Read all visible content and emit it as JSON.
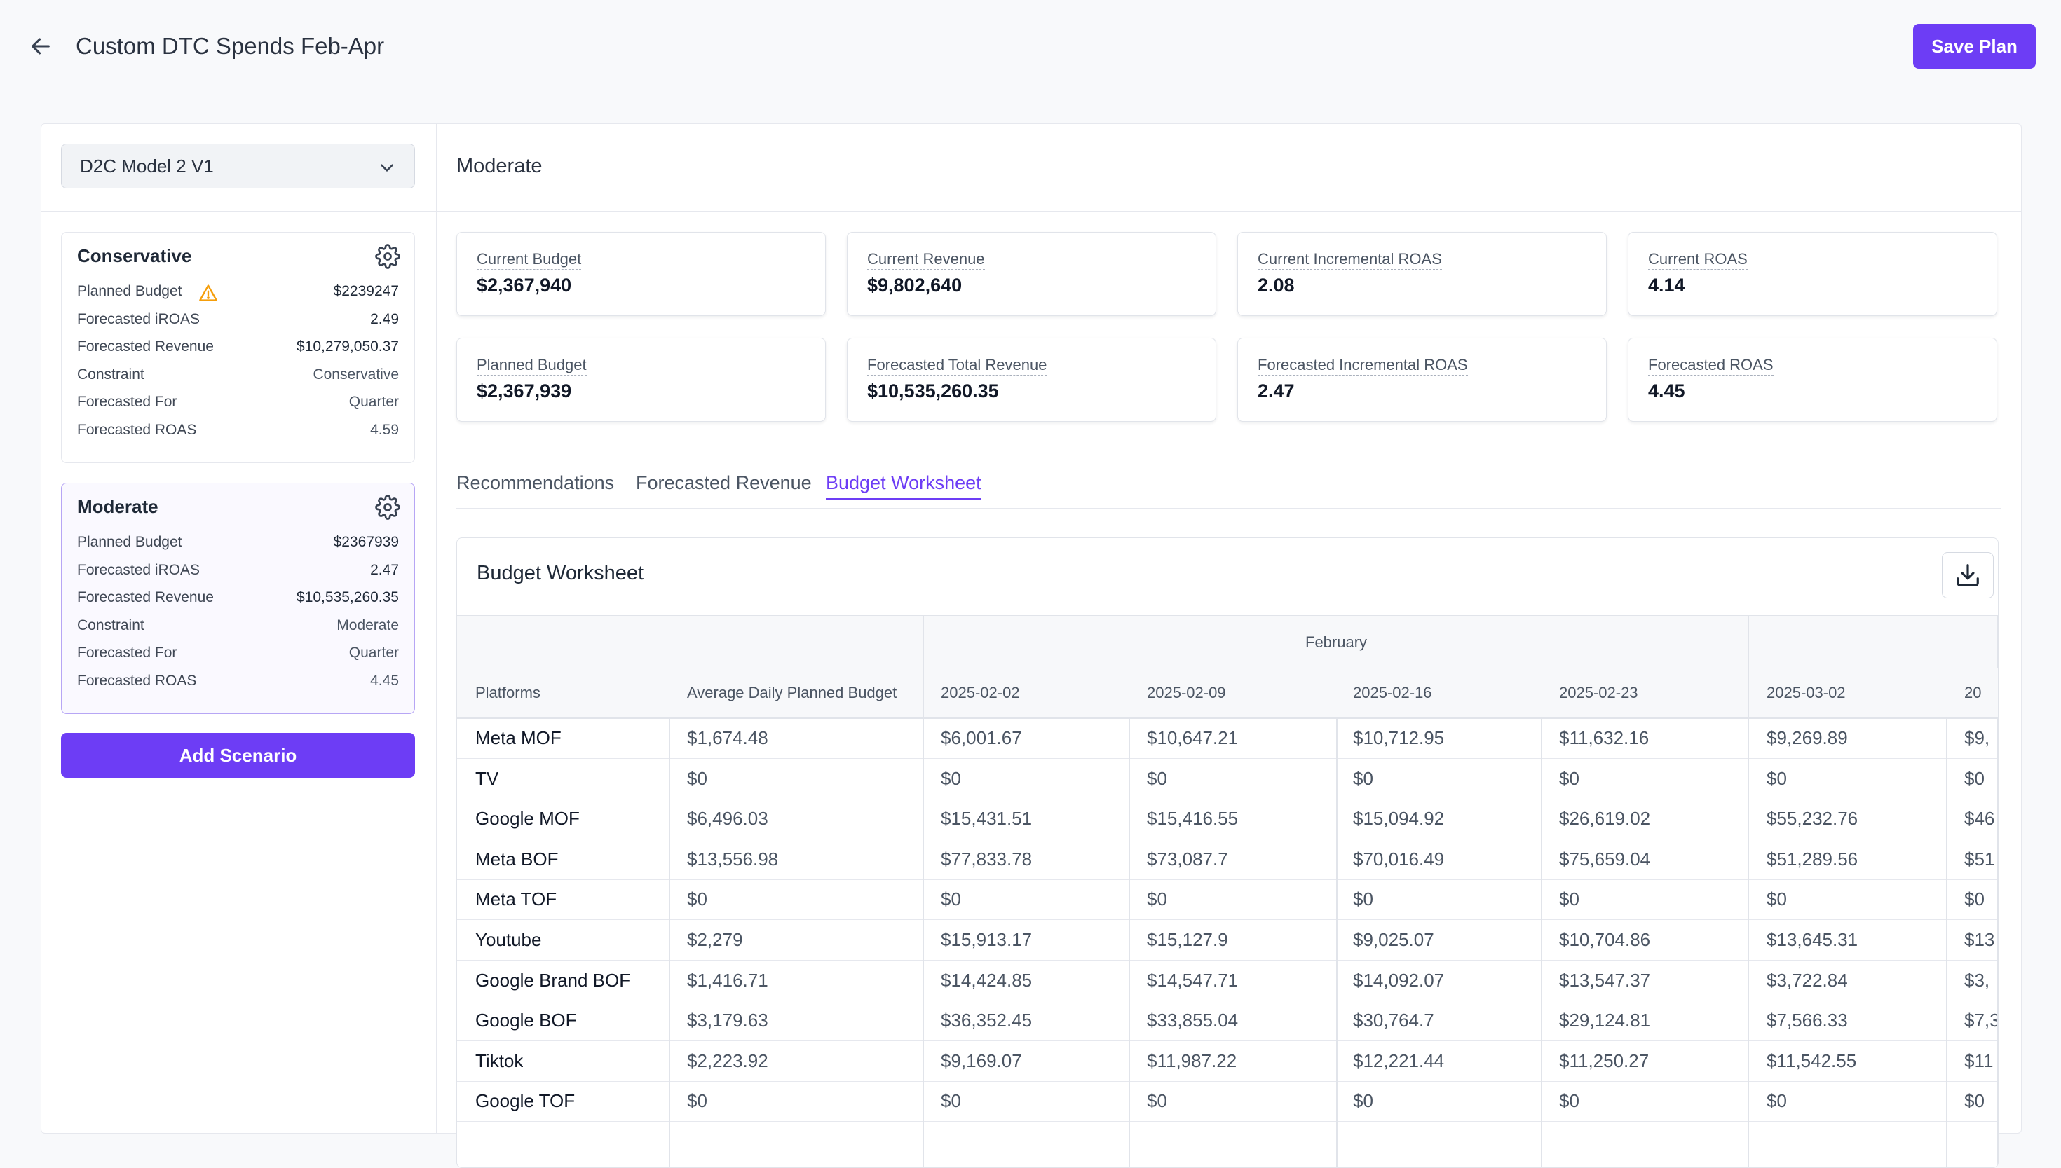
{
  "header": {
    "title": "Custom DTC Spends Feb-Apr",
    "save_label": "Save Plan"
  },
  "left": {
    "model_select": "D2C Model 2 V1",
    "add_scenario_label": "Add Scenario",
    "scenarios": [
      {
        "name": "Conservative",
        "rows": [
          {
            "k": "Planned Budget",
            "v": "$2239247",
            "warning": true
          },
          {
            "k": "Forecasted iROAS",
            "v": "2.49"
          },
          {
            "k": "Forecasted Revenue",
            "v": "$10,279,050.37"
          },
          {
            "k": "Constraint",
            "v": "Conservative"
          },
          {
            "k": "Forecasted For",
            "v": "Quarter"
          },
          {
            "k": "Forecasted ROAS",
            "v": "4.59"
          }
        ]
      },
      {
        "name": "Moderate",
        "rows": [
          {
            "k": "Planned Budget",
            "v": "$2367939"
          },
          {
            "k": "Forecasted iROAS",
            "v": "2.47"
          },
          {
            "k": "Forecasted Revenue",
            "v": "$10,535,260.35"
          },
          {
            "k": "Constraint",
            "v": "Moderate"
          },
          {
            "k": "Forecasted For",
            "v": "Quarter"
          },
          {
            "k": "Forecasted ROAS",
            "v": "4.45"
          }
        ]
      }
    ]
  },
  "right": {
    "scenario_title": "Moderate",
    "metrics": [
      {
        "label": "Current Budget",
        "value": "$2,367,940"
      },
      {
        "label": "Current Revenue",
        "value": "$9,802,640"
      },
      {
        "label": "Current Incremental ROAS",
        "value": "2.08"
      },
      {
        "label": "Current ROAS",
        "value": "4.14"
      },
      {
        "label": "Planned Budget",
        "value": "$2,367,939"
      },
      {
        "label": "Forecasted Total Revenue",
        "value": "$10,535,260.35"
      },
      {
        "label": "Forecasted Incremental ROAS",
        "value": "2.47"
      },
      {
        "label": "Forecasted ROAS",
        "value": "4.45"
      }
    ],
    "tabs": [
      "Recommendations",
      "Forecasted Revenue",
      "Budget Worksheet"
    ],
    "active_tab": "Budget Worksheet",
    "worksheet": {
      "title": "Budget Worksheet",
      "month": "February",
      "columns": [
        "Platforms",
        "Average Daily Planned Budget",
        "2025-02-02",
        "2025-02-09",
        "2025-02-16",
        "2025-02-23",
        "2025-03-02",
        "20"
      ],
      "rows": [
        [
          "Meta MOF",
          "$1,674.48",
          "$6,001.67",
          "$10,647.21",
          "$10,712.95",
          "$11,632.16",
          "$9,269.89",
          "$9,"
        ],
        [
          "TV",
          "$0",
          "$0",
          "$0",
          "$0",
          "$0",
          "$0",
          "$0"
        ],
        [
          "Google MOF",
          "$6,496.03",
          "$15,431.51",
          "$15,416.55",
          "$15,094.92",
          "$26,619.02",
          "$55,232.76",
          "$46"
        ],
        [
          "Meta BOF",
          "$13,556.98",
          "$77,833.78",
          "$73,087.7",
          "$70,016.49",
          "$75,659.04",
          "$51,289.56",
          "$51"
        ],
        [
          "Meta TOF",
          "$0",
          "$0",
          "$0",
          "$0",
          "$0",
          "$0",
          "$0"
        ],
        [
          "Youtube",
          "$2,279",
          "$15,913.17",
          "$15,127.9",
          "$9,025.07",
          "$10,704.86",
          "$13,645.31",
          "$13"
        ],
        [
          "Google Brand BOF",
          "$1,416.71",
          "$14,424.85",
          "$14,547.71",
          "$14,092.07",
          "$13,547.37",
          "$3,722.84",
          "$3,"
        ],
        [
          "Google BOF",
          "$3,179.63",
          "$36,352.45",
          "$33,855.04",
          "$30,764.7",
          "$29,124.81",
          "$7,566.33",
          "$7,3"
        ],
        [
          "Tiktok",
          "$2,223.92",
          "$9,169.07",
          "$11,987.22",
          "$12,221.44",
          "$11,250.27",
          "$11,542.55",
          "$11"
        ],
        [
          "Google TOF",
          "$0",
          "$0",
          "$0",
          "$0",
          "$0",
          "$0",
          "$0"
        ]
      ]
    }
  },
  "colors": {
    "accent": "#6d3df5",
    "warning": "#f59e0b"
  },
  "icons": {
    "back": "arrow-left-icon",
    "chevron": "chevron-down-icon",
    "gear": "gear-icon",
    "warning": "warning-triangle-icon",
    "download": "download-icon"
  }
}
